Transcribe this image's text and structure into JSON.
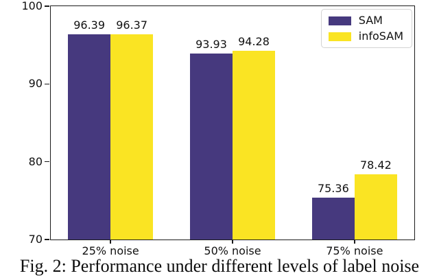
{
  "figure": {
    "caption": "Fig. 2: Performance under different levels of label noise"
  },
  "chart_data": {
    "type": "bar",
    "title": "",
    "xlabel": "",
    "ylabel": "",
    "categories": [
      "25% noise",
      "50% noise",
      "75% noise"
    ],
    "series": [
      {
        "name": "SAM",
        "color": "#46397e",
        "values": [
          96.39,
          93.93,
          75.36
        ]
      },
      {
        "name": "infoSAM",
        "color": "#fae423",
        "values": [
          96.37,
          94.28,
          78.42
        ]
      }
    ],
    "bar_value_labels": [
      [
        "96.39",
        "93.93",
        "75.36"
      ],
      [
        "96.37",
        "94.28",
        "78.42"
      ]
    ],
    "ylim": [
      70,
      100
    ],
    "yticks": [
      "70",
      "80",
      "90",
      "100"
    ],
    "grid": false,
    "legend_position": "upper right",
    "spine_color": "#1a1a1a"
  }
}
